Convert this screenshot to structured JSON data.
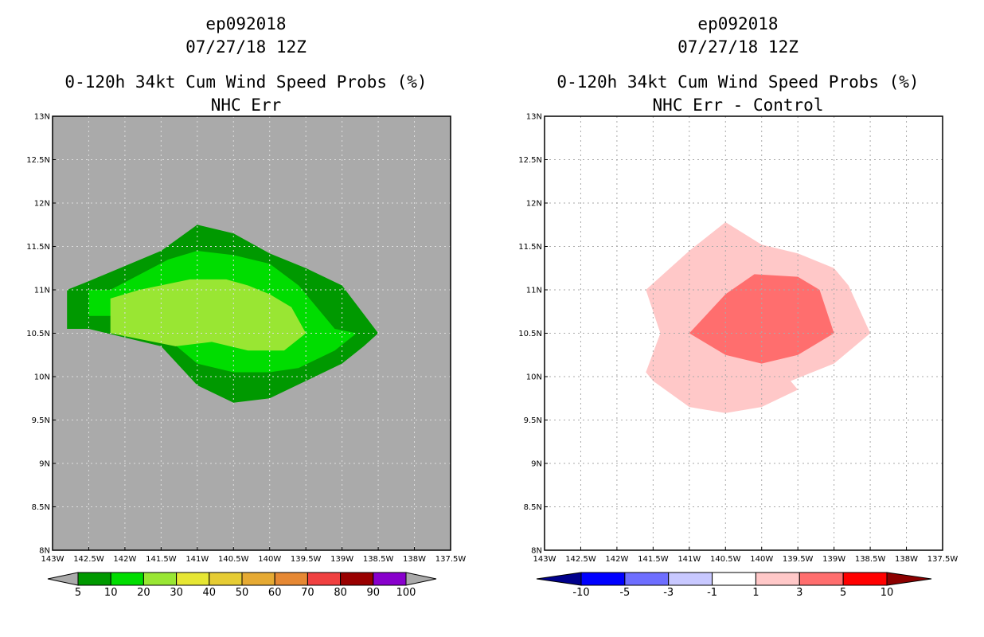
{
  "panels": [
    {
      "id": "left",
      "storm": "ep092018",
      "datetime": "07/27/18 12Z",
      "product": "0-120h 34kt Cum Wind Speed Probs (%)",
      "subtitle": "NHC Err",
      "colors": {
        "background": "#aaaaaa",
        "grid": "#dddddd"
      }
    },
    {
      "id": "right",
      "storm": "ep092018",
      "datetime": "07/27/18 12Z",
      "product": "0-120h 34kt Cum Wind Speed Probs (%)",
      "subtitle": "NHC Err - Control",
      "colors": {
        "background": "#ffffff",
        "grid": "#aaaaaa"
      }
    }
  ],
  "chart_data": [
    {
      "type": "contour-map",
      "panel": "left",
      "title": "0-120h 34kt Cum Wind Speed Probs (%)",
      "subtitle": "NHC Err",
      "xlim": [
        -143,
        -137.5
      ],
      "ylim": [
        8,
        13
      ],
      "x_tick_labels": [
        "143W",
        "142.5W",
        "142W",
        "141.5W",
        "141W",
        "140.5W",
        "140W",
        "139.5W",
        "139W",
        "138.5W",
        "138W",
        "137.5W"
      ],
      "y_tick_labels": [
        "8N",
        "8.5N",
        "9N",
        "9.5N",
        "10N",
        "10.5N",
        "11N",
        "11.5N",
        "12N",
        "12.5N",
        "13N"
      ],
      "contours": [
        {
          "level": "5-10",
          "color": "#009900",
          "lon": [
            -142.5,
            -141.5,
            -141,
            -140.5,
            -140,
            -139.5,
            -139,
            -138.5,
            -138.7,
            -139,
            -139.5,
            -140,
            -140.5,
            -141,
            -141.5,
            -142.5,
            -142.8,
            -142.8
          ],
          "lat": [
            11.1,
            11.45,
            11.75,
            11.65,
            11.42,
            11.25,
            11.05,
            10.5,
            10.35,
            10.15,
            9.95,
            9.75,
            9.7,
            9.9,
            10.35,
            10.55,
            10.55,
            11.0
          ]
        },
        {
          "level": "10-20",
          "color": "#00dd00",
          "lon": [
            -142.5,
            -142.2,
            -141.4,
            -141,
            -140.5,
            -140,
            -139.6,
            -139.1,
            -138.8,
            -139.1,
            -139.6,
            -140,
            -140.5,
            -141,
            -141.5,
            -142,
            -142.5
          ],
          "lat": [
            11.0,
            11.0,
            11.35,
            11.45,
            11.4,
            11.3,
            11.05,
            10.55,
            10.5,
            10.3,
            10.1,
            10.05,
            10.05,
            10.15,
            10.5,
            10.7,
            10.7
          ]
        },
        {
          "level": "20-30",
          "color": "#99e633",
          "lon": [
            -142.2,
            -141.8,
            -141.1,
            -140.6,
            -140.3,
            -140,
            -139.7,
            -139.5,
            -139.8,
            -140.3,
            -140.8,
            -141.3,
            -142.2
          ],
          "lat": [
            10.9,
            11.0,
            11.12,
            11.12,
            11.05,
            10.95,
            10.8,
            10.5,
            10.3,
            10.3,
            10.4,
            10.35,
            10.5
          ]
        }
      ],
      "legend": {
        "labels": [
          "5",
          "10",
          "20",
          "30",
          "40",
          "50",
          "60",
          "70",
          "80",
          "90",
          "100"
        ],
        "colors": [
          "#009900",
          "#00dd00",
          "#99e633",
          "#e6e633",
          "#e6cc33",
          "#e6aa33",
          "#e68833",
          "#f04040",
          "#990000",
          "#8800cc"
        ],
        "end_colors": [
          "#aaaaaa",
          "#aaaaaa"
        ]
      }
    },
    {
      "type": "contour-map",
      "panel": "right",
      "title": "0-120h 34kt Cum Wind Speed Probs (%)",
      "subtitle": "NHC Err - Control",
      "xlim": [
        -143,
        -137.5
      ],
      "ylim": [
        8,
        13
      ],
      "x_tick_labels": [
        "143W",
        "142.5W",
        "142W",
        "141.5W",
        "141W",
        "140.5W",
        "140W",
        "139.5W",
        "139W",
        "138.5W",
        "138W",
        "137.5W"
      ],
      "y_tick_labels": [
        "8N",
        "8.5N",
        "9N",
        "9.5N",
        "10N",
        "10.5N",
        "11N",
        "11.5N",
        "12N",
        "12.5N",
        "13N"
      ],
      "contours": [
        {
          "level": "1-3",
          "color": "#ffc8c8",
          "lon": [
            -141.6,
            -141,
            -140.5,
            -140,
            -139.5,
            -139,
            -138.8,
            -138.5,
            -139,
            -139.6,
            -139.5,
            -140,
            -140.5,
            -141,
            -141.5,
            -141.6,
            -141.4
          ],
          "lat": [
            11.0,
            11.45,
            11.78,
            11.52,
            11.42,
            11.25,
            11.05,
            10.5,
            10.15,
            9.95,
            9.85,
            9.65,
            9.58,
            9.65,
            9.95,
            10.05,
            10.5
          ]
        },
        {
          "level": "3-5",
          "color": "#ff6e6e",
          "lon": [
            -141,
            -140.5,
            -140.1,
            -139.5,
            -139.2,
            -139,
            -139.5,
            -140,
            -140.5,
            -141
          ],
          "lat": [
            10.5,
            10.95,
            11.18,
            11.15,
            11.0,
            10.5,
            10.25,
            10.15,
            10.25,
            10.5
          ]
        }
      ],
      "legend": {
        "labels": [
          "-10",
          "-5",
          "-3",
          "-1",
          "1",
          "3",
          "5",
          "10"
        ],
        "colors": [
          "#0000ff",
          "#6e6eff",
          "#c8c8ff",
          "#ffffff",
          "#ffc8c8",
          "#ff6e6e",
          "#ff0000"
        ],
        "end_colors": [
          "#00008c",
          "#8c0000"
        ]
      }
    }
  ]
}
